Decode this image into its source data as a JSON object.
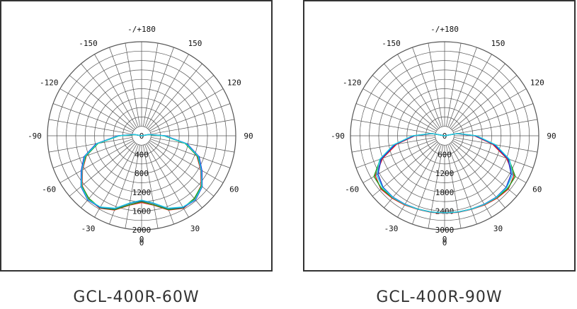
{
  "chart_data": [
    {
      "type": "polar",
      "title": "GCL-400R-60W",
      "angle_labels": [
        "-/+180",
        "150",
        "120",
        "90",
        "60",
        "30",
        "0",
        "-30",
        "-60",
        "-90",
        "-120",
        "-150"
      ],
      "radial_ticks": [
        "0",
        "400",
        "800",
        "1200",
        "1600",
        "2000"
      ],
      "rmax": 2000,
      "series": [
        {
          "color": "#e02020",
          "angles": [
            -115,
            -100,
            -90,
            -80,
            -70,
            -60,
            -50,
            -40,
            -30,
            -20,
            -10,
            0,
            10,
            20,
            30,
            40,
            50,
            60,
            70,
            80,
            90,
            100,
            115
          ],
          "values": [
            0,
            150,
            480,
            950,
            1250,
            1450,
            1650,
            1750,
            1780,
            1680,
            1500,
            1420,
            1500,
            1680,
            1780,
            1750,
            1650,
            1450,
            1250,
            950,
            480,
            150,
            0
          ]
        },
        {
          "color": "#20a020",
          "angles": [
            -115,
            -100,
            -90,
            -80,
            -70,
            -60,
            -50,
            -40,
            -30,
            -20,
            -10,
            0,
            10,
            20,
            30,
            40,
            50,
            60,
            70,
            80,
            90,
            100,
            115
          ],
          "values": [
            0,
            140,
            470,
            940,
            1260,
            1470,
            1660,
            1740,
            1770,
            1670,
            1490,
            1400,
            1490,
            1670,
            1770,
            1740,
            1660,
            1470,
            1260,
            940,
            470,
            140,
            0
          ]
        },
        {
          "color": "#2030d0",
          "angles": [
            -115,
            -100,
            -90,
            -80,
            -70,
            -60,
            -50,
            -40,
            -30,
            -20,
            -10,
            0,
            10,
            20,
            30,
            40,
            50,
            60,
            70,
            80,
            90,
            100,
            115
          ],
          "values": [
            0,
            160,
            500,
            980,
            1300,
            1480,
            1680,
            1780,
            1760,
            1650,
            1460,
            1380,
            1460,
            1650,
            1760,
            1780,
            1680,
            1480,
            1300,
            980,
            500,
            160,
            0
          ]
        },
        {
          "color": "#20d0e0",
          "angles": [
            -115,
            -100,
            -90,
            -80,
            -70,
            -60,
            -50,
            -40,
            -30,
            -20,
            -10,
            0,
            10,
            20,
            30,
            40,
            50,
            60,
            70,
            80,
            90,
            100,
            115
          ],
          "values": [
            0,
            150,
            480,
            960,
            1280,
            1460,
            1670,
            1770,
            1750,
            1640,
            1450,
            1370,
            1450,
            1640,
            1750,
            1770,
            1670,
            1460,
            1280,
            960,
            480,
            150,
            0
          ]
        }
      ]
    },
    {
      "type": "polar",
      "title": "GCL-400R-90W",
      "angle_labels": [
        "-/+180",
        "150",
        "120",
        "90",
        "60",
        "30",
        "0",
        "-30",
        "-60",
        "-90",
        "-120",
        "-150"
      ],
      "radial_ticks": [
        "0",
        "600",
        "1200",
        "1800",
        "2400",
        "3000"
      ],
      "rmax": 3000,
      "series": [
        {
          "color": "#e02020",
          "angles": [
            -110,
            -100,
            -90,
            -80,
            -70,
            -60,
            -50,
            -40,
            -30,
            -20,
            -10,
            0,
            10,
            20,
            30,
            40,
            50,
            60,
            70,
            80,
            90,
            100,
            110
          ],
          "values": [
            0,
            400,
            950,
            1550,
            2100,
            2550,
            2650,
            2600,
            2550,
            2500,
            2480,
            2470,
            2480,
            2500,
            2550,
            2600,
            2650,
            2550,
            2100,
            1550,
            950,
            400,
            0
          ]
        },
        {
          "color": "#20a020",
          "angles": [
            -110,
            -100,
            -90,
            -80,
            -70,
            -60,
            -50,
            -40,
            -30,
            -20,
            -10,
            0,
            10,
            20,
            30,
            40,
            50,
            60,
            70,
            80,
            90,
            100,
            110
          ],
          "values": [
            0,
            420,
            1000,
            1620,
            2180,
            2600,
            2620,
            2580,
            2530,
            2490,
            2470,
            2460,
            2470,
            2490,
            2530,
            2580,
            2620,
            2600,
            2180,
            1620,
            1000,
            420,
            0
          ]
        },
        {
          "color": "#2030d0",
          "angles": [
            -110,
            -100,
            -90,
            -80,
            -70,
            -60,
            -50,
            -40,
            -30,
            -20,
            -10,
            0,
            10,
            20,
            30,
            40,
            50,
            60,
            70,
            80,
            90,
            100,
            110
          ],
          "values": [
            0,
            410,
            980,
            1600,
            2150,
            2450,
            2560,
            2560,
            2520,
            2490,
            2470,
            2460,
            2470,
            2490,
            2520,
            2560,
            2560,
            2450,
            2150,
            1600,
            980,
            410,
            0
          ]
        },
        {
          "color": "#20d0e0",
          "angles": [
            -110,
            -100,
            -90,
            -80,
            -70,
            -60,
            -50,
            -40,
            -30,
            -20,
            -10,
            0,
            10,
            20,
            30,
            40,
            50,
            60,
            70,
            80,
            90,
            100,
            110
          ],
          "values": [
            0,
            430,
            1020,
            1650,
            2200,
            2500,
            2580,
            2570,
            2530,
            2490,
            2470,
            2460,
            2470,
            2490,
            2530,
            2570,
            2580,
            2500,
            2200,
            1650,
            1020,
            430,
            0
          ]
        }
      ]
    }
  ]
}
